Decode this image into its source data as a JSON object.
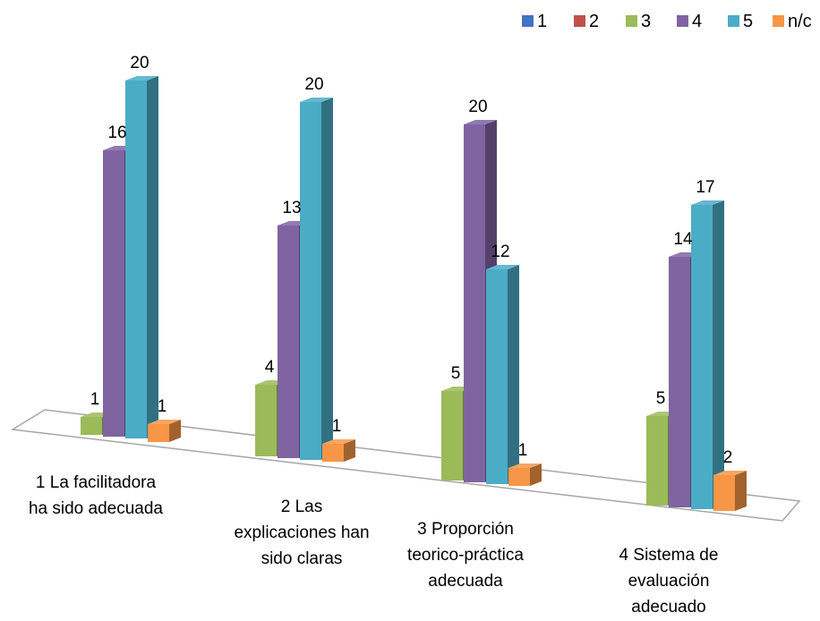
{
  "chart_data": {
    "type": "bar",
    "categories": [
      "1 La facilitadora ha sido adecuada",
      "2 Las explicaciones han sido claras",
      "3 Proporción teorico-práctica adecuada",
      "4 Sistema de evaluación adecuado"
    ],
    "category_lines": [
      [
        "1 La facilitadora",
        "ha sido adecuada"
      ],
      [
        "2 Las",
        "explicaciones han",
        "sido claras"
      ],
      [
        "3 Proporción",
        "teorico-práctica",
        "adecuada"
      ],
      [
        "4 Sistema de",
        "evaluación",
        "adecuado"
      ]
    ],
    "series": [
      {
        "name": "1",
        "values": [
          0,
          0,
          0,
          0
        ],
        "color": "#4472c4"
      },
      {
        "name": "2",
        "values": [
          0,
          0,
          0,
          0
        ],
        "color": "#c0504d"
      },
      {
        "name": "3",
        "values": [
          1,
          4,
          5,
          5
        ],
        "color": "#9bbb59"
      },
      {
        "name": "4",
        "values": [
          16,
          13,
          20,
          14
        ],
        "color": "#8064a2"
      },
      {
        "name": "5",
        "values": [
          20,
          20,
          12,
          17
        ],
        "color": "#4bacc6"
      },
      {
        "name": "n/c",
        "values": [
          1,
          1,
          1,
          2
        ],
        "color": "#f79646"
      }
    ],
    "legend_position": "top-right",
    "grid": false,
    "perspective": "3d"
  }
}
